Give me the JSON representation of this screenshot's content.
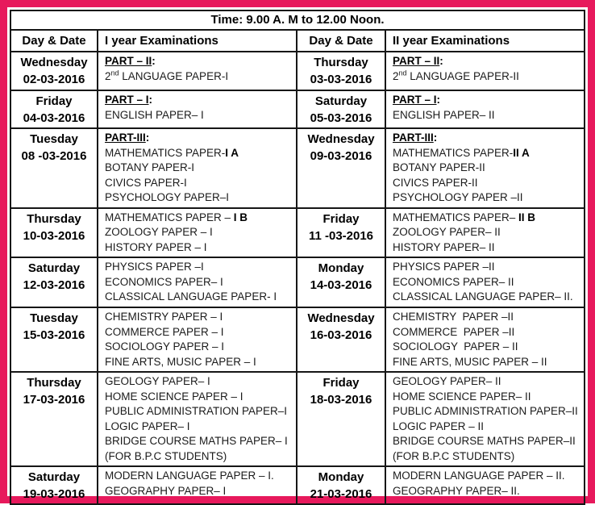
{
  "colors": {
    "frame": "#E7195C",
    "grid": "#161616"
  },
  "header": {
    "time_title": "Time: 9.00 A. M to 12.00 Noon.",
    "columns": [
      "Day & Date",
      "I year Examinations",
      "Day & Date",
      "II year Examinations"
    ]
  },
  "rows": [
    {
      "left_day": {
        "day": "Wednesday",
        "date": "02-03-2016"
      },
      "left_exams": {
        "lines": [
          [
            {
              "t": "PART – II",
              "b": 1,
              "u": 1
            },
            {
              "t": ":",
              "b": 1
            }
          ],
          [
            {
              "t": "2"
            },
            {
              "t": "nd",
              "s": 1
            },
            {
              "t": " LANGUAGE PAPER-I"
            }
          ]
        ]
      },
      "right_day": {
        "day": "Thursday",
        "date": "03-03-2016"
      },
      "right_exams": {
        "lines": [
          [
            {
              "t": "PART – II",
              "b": 1,
              "u": 1
            },
            {
              "t": ":",
              "b": 1
            }
          ],
          [
            {
              "t": "2"
            },
            {
              "t": "nd",
              "s": 1
            },
            {
              "t": " LANGUAGE PAPER-II"
            }
          ]
        ]
      }
    },
    {
      "left_day": {
        "day": "Friday",
        "date": "04-03-2016"
      },
      "left_exams": {
        "lines": [
          [
            {
              "t": "PART – I",
              "b": 1,
              "u": 1
            },
            {
              "t": ":",
              "b": 1
            }
          ],
          [
            {
              "t": "ENGLISH PAPER– I"
            }
          ]
        ]
      },
      "right_day": {
        "day": "Saturday",
        "date": "05-03-2016"
      },
      "right_exams": {
        "lines": [
          [
            {
              "t": "PART – I",
              "b": 1,
              "u": 1
            },
            {
              "t": ":",
              "b": 1
            }
          ],
          [
            {
              "t": "ENGLISH PAPER– II"
            }
          ]
        ]
      }
    },
    {
      "left_day": {
        "day": "Tuesday",
        "date": "08 -03-2016"
      },
      "left_exams": {
        "lines": [
          [
            {
              "t": "PART-III",
              "b": 1,
              "u": 1
            },
            {
              "t": ":",
              "b": 1
            }
          ],
          [
            {
              "t": "MATHEMATICS PAPER-"
            },
            {
              "t": "I A",
              "b": 1
            }
          ],
          [
            {
              "t": "BOTANY PAPER-I"
            }
          ],
          [
            {
              "t": "CIVICS PAPER-I"
            }
          ],
          [
            {
              "t": "PSYCHOLOGY PAPER–I"
            }
          ]
        ]
      },
      "right_day": {
        "day": "Wednesday",
        "date": "09-03-2016"
      },
      "right_exams": {
        "lines": [
          [
            {
              "t": "PART-III",
              "b": 1,
              "u": 1
            },
            {
              "t": ":",
              "b": 1
            }
          ],
          [
            {
              "t": "MATHEMATICS PAPER-"
            },
            {
              "t": "II A",
              "b": 1
            }
          ],
          [
            {
              "t": "BOTANY PAPER-II"
            }
          ],
          [
            {
              "t": "CIVICS PAPER-II"
            }
          ],
          [
            {
              "t": "PSYCHOLOGY PAPER –II"
            }
          ]
        ]
      }
    },
    {
      "left_day": {
        "day": "Thursday",
        "date": "10-03-2016"
      },
      "left_exams": {
        "lines": [
          [
            {
              "t": "MATHEMATICS PAPER – "
            },
            {
              "t": "I B",
              "b": 1
            }
          ],
          [
            {
              "t": "ZOOLOGY PAPER – I"
            }
          ],
          [
            {
              "t": "HISTORY PAPER – I"
            }
          ]
        ]
      },
      "right_day": {
        "day": "Friday",
        "date": "11 -03-2016"
      },
      "right_exams": {
        "lines": [
          [
            {
              "t": "MATHEMATICS PAPER– "
            },
            {
              "t": "II B",
              "b": 1
            }
          ],
          [
            {
              "t": "ZOOLOGY PAPER– II"
            }
          ],
          [
            {
              "t": "HISTORY PAPER– II"
            }
          ]
        ]
      }
    },
    {
      "left_day": {
        "day": "Saturday",
        "date": "12-03-2016"
      },
      "left_exams": {
        "lines": [
          [
            {
              "t": "PHYSICS PAPER –I"
            }
          ],
          [
            {
              "t": "ECONOMICS PAPER– I"
            }
          ],
          [
            {
              "t": "CLASSICAL LANGUAGE PAPER- I"
            }
          ]
        ]
      },
      "right_day": {
        "day": "Monday",
        "date": "14-03-2016"
      },
      "right_exams": {
        "lines": [
          [
            {
              "t": "PHYSICS PAPER –II"
            }
          ],
          [
            {
              "t": "ECONOMICS PAPER– II"
            }
          ],
          [
            {
              "t": "CLASSICAL LANGUAGE PAPER– II."
            }
          ]
        ]
      }
    },
    {
      "left_day": {
        "day": "Tuesday",
        "date": "15-03-2016"
      },
      "left_exams": {
        "lines": [
          [
            {
              "t": "CHEMISTRY PAPER – I"
            }
          ],
          [
            {
              "t": "COMMERCE PAPER – I"
            }
          ],
          [
            {
              "t": "SOCIOLOGY PAPER – I"
            }
          ],
          [
            {
              "t": "FINE ARTS, MUSIC PAPER – I"
            }
          ]
        ]
      },
      "right_day": {
        "day": "Wednesday",
        "date": "16-03-2016"
      },
      "right_exams": {
        "lines": [
          [
            {
              "t": "CHEMISTRY  PAPER –II"
            }
          ],
          [
            {
              "t": "COMMERCE  PAPER –II"
            }
          ],
          [
            {
              "t": "SOCIOLOGY  PAPER – II"
            }
          ],
          [
            {
              "t": "FINE ARTS, MUSIC PAPER – II"
            }
          ]
        ]
      }
    },
    {
      "left_day": {
        "day": "Thursday",
        "date": "17-03-2016"
      },
      "left_exams": {
        "lines": [
          [
            {
              "t": "GEOLOGY PAPER– I"
            }
          ],
          [
            {
              "t": "HOME SCIENCE PAPER – I"
            }
          ],
          [
            {
              "t": "PUBLIC ADMINISTRATION PAPER–I"
            }
          ],
          [
            {
              "t": "LOGIC PAPER– I"
            }
          ],
          [
            {
              "t": "BRIDGE COURSE MATHS PAPER– I"
            }
          ],
          [
            {
              "t": "(FOR B.P.C STUDENTS)"
            }
          ]
        ]
      },
      "right_day": {
        "day": "Friday",
        "date": "18-03-2016"
      },
      "right_exams": {
        "lines": [
          [
            {
              "t": "GEOLOGY PAPER– II"
            }
          ],
          [
            {
              "t": "HOME SCIENCE PAPER– II"
            }
          ],
          [
            {
              "t": "PUBLIC ADMINISTRATION PAPER–II"
            }
          ],
          [
            {
              "t": "LOGIC PAPER – II"
            }
          ],
          [
            {
              "t": "BRIDGE COURSE MATHS PAPER–II"
            }
          ],
          [
            {
              "t": "(FOR B.P.C STUDENTS)"
            }
          ]
        ]
      }
    },
    {
      "left_day": {
        "day": "Saturday",
        "date": "19-03-2016"
      },
      "left_exams": {
        "lines": [
          [
            {
              "t": "MODERN LANGUAGE PAPER – I."
            }
          ],
          [
            {
              "t": "GEOGRAPHY PAPER– I"
            }
          ]
        ]
      },
      "right_day": {
        "day": "Monday",
        "date": "21-03-2016"
      },
      "right_exams": {
        "lines": [
          [
            {
              "t": "MODERN LANGUAGE PAPER – II."
            }
          ],
          [
            {
              "t": "GEOGRAPHY PAPER– II."
            }
          ]
        ]
      }
    }
  ]
}
